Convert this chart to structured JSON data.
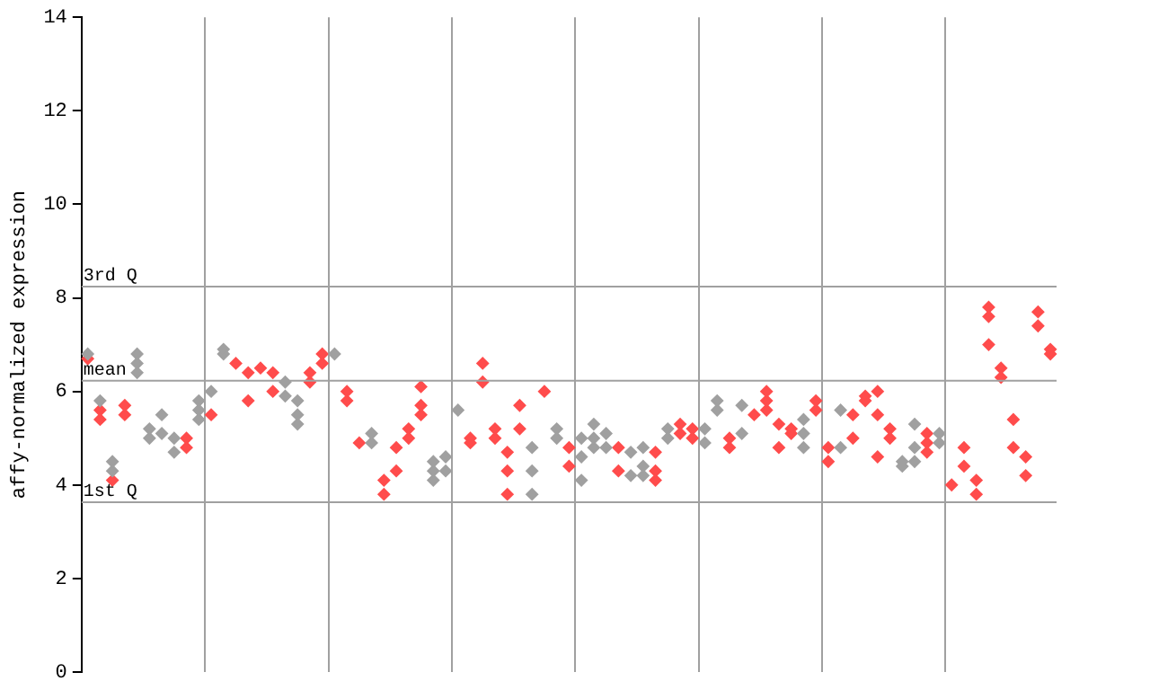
{
  "chart_data": {
    "type": "scatter",
    "ylabel": "affy-normalized expression",
    "categories": [
      null,
      null,
      null,
      null,
      null,
      null,
      null,
      null,
      null,
      null,
      null,
      null,
      null,
      null,
      null,
      null,
      null,
      null,
      null,
      null,
      null,
      null,
      null,
      null,
      null,
      null,
      null,
      null,
      null,
      null,
      null,
      null,
      null,
      null,
      null,
      null,
      null,
      null,
      null,
      null,
      null,
      null,
      null,
      null,
      null,
      null,
      null,
      null,
      null,
      null,
      null,
      null,
      null,
      null,
      null,
      null,
      null,
      null,
      null,
      null,
      null,
      null,
      null,
      null,
      null,
      null,
      null,
      null,
      null,
      null,
      null,
      null,
      null,
      null,
      null,
      null,
      null,
      null,
      null
    ],
    "ylim": [
      0,
      14
    ],
    "yticks": [
      0,
      2,
      4,
      6,
      8,
      10,
      12,
      14
    ],
    "grid": "x",
    "tick_labels": "y",
    "marker": "diamond",
    "series": [
      {
        "color": "#a0a0a0",
        "values": [
          6.8,
          5.8,
          4.5,
          null,
          6.8,
          5.2,
          5.5,
          5.0,
          null,
          5.8,
          6.0,
          6.9,
          null,
          null,
          null,
          null,
          6.2,
          5.8,
          null,
          null,
          6.8,
          null,
          null,
          5.1,
          null,
          null,
          null,
          null,
          4.5,
          4.6,
          5.6,
          null,
          null,
          null,
          null,
          null,
          4.8,
          null,
          5.2,
          null,
          5.0,
          5.3,
          5.1,
          null,
          4.7,
          4.8,
          null,
          5.2,
          null,
          null,
          5.2,
          5.8,
          null,
          5.7,
          null,
          null,
          null,
          null,
          5.4,
          null,
          null,
          5.6,
          null,
          null,
          null,
          null,
          4.5,
          5.3,
          null,
          5.1,
          null,
          null,
          null,
          null,
          null,
          null,
          null,
          null,
          null
        ]
      },
      {
        "color": "#a0a0a0",
        "values": [
          null,
          null,
          4.3,
          null,
          6.6,
          5.0,
          5.1,
          4.7,
          null,
          5.6,
          null,
          6.8,
          null,
          null,
          null,
          null,
          5.9,
          5.5,
          null,
          null,
          null,
          null,
          null,
          4.9,
          null,
          null,
          null,
          null,
          4.3,
          4.3,
          null,
          null,
          null,
          null,
          null,
          null,
          4.3,
          null,
          5.0,
          null,
          4.6,
          5.0,
          4.8,
          null,
          4.2,
          4.4,
          null,
          5.0,
          null,
          null,
          4.9,
          5.6,
          null,
          5.1,
          null,
          null,
          null,
          null,
          5.1,
          null,
          null,
          4.8,
          null,
          null,
          null,
          null,
          4.4,
          4.8,
          null,
          4.9,
          null,
          null,
          null,
          null,
          null,
          null,
          null,
          null,
          null
        ]
      },
      {
        "color": "#a0a0a0",
        "values": [
          null,
          null,
          null,
          null,
          6.4,
          null,
          null,
          null,
          null,
          5.4,
          null,
          null,
          null,
          null,
          null,
          null,
          null,
          5.3,
          null,
          null,
          null,
          null,
          null,
          null,
          null,
          null,
          null,
          null,
          4.1,
          null,
          null,
          null,
          null,
          null,
          null,
          null,
          3.8,
          null,
          null,
          null,
          4.1,
          4.8,
          null,
          null,
          null,
          4.2,
          null,
          null,
          null,
          null,
          null,
          null,
          null,
          null,
          null,
          null,
          null,
          null,
          4.8,
          null,
          null,
          null,
          null,
          null,
          null,
          null,
          null,
          4.5,
          null,
          null,
          null,
          null,
          null,
          null,
          null,
          null,
          null,
          null,
          null
        ]
      },
      {
        "color": "#ff4c4c",
        "values": [
          6.7,
          5.6,
          4.1,
          5.7,
          null,
          null,
          null,
          null,
          5.0,
          null,
          5.5,
          null,
          6.6,
          6.4,
          6.5,
          6.4,
          null,
          null,
          6.4,
          6.8,
          null,
          6.0,
          4.9,
          null,
          4.1,
          4.8,
          5.2,
          6.1,
          null,
          null,
          null,
          5.0,
          6.6,
          5.2,
          4.7,
          5.7,
          null,
          6.0,
          null,
          4.8,
          null,
          null,
          null,
          4.8,
          null,
          null,
          4.7,
          null,
          5.3,
          5.2,
          null,
          null,
          5.0,
          null,
          5.5,
          6.0,
          5.3,
          5.2,
          null,
          5.8,
          4.8,
          null,
          5.5,
          5.9,
          6.0,
          5.2,
          null,
          null,
          5.1,
          null,
          4.0,
          4.8,
          4.1,
          7.8,
          6.5,
          5.4,
          4.6,
          7.7,
          6.9
        ]
      },
      {
        "color": "#ff4c4c",
        "values": [
          null,
          5.4,
          null,
          5.5,
          null,
          null,
          null,
          null,
          4.8,
          null,
          null,
          null,
          null,
          5.8,
          null,
          6.0,
          null,
          null,
          6.2,
          6.6,
          null,
          5.8,
          null,
          null,
          3.8,
          4.3,
          5.0,
          5.7,
          null,
          null,
          null,
          4.9,
          6.2,
          5.0,
          4.3,
          5.2,
          null,
          null,
          null,
          4.4,
          null,
          null,
          null,
          4.3,
          null,
          null,
          4.3,
          null,
          5.1,
          5.0,
          null,
          null,
          4.8,
          null,
          null,
          5.8,
          4.8,
          5.1,
          null,
          5.6,
          4.5,
          null,
          5.0,
          5.8,
          5.5,
          5.0,
          null,
          null,
          4.9,
          null,
          null,
          4.4,
          3.8,
          7.6,
          6.3,
          4.8,
          4.2,
          7.4,
          6.8
        ]
      },
      {
        "color": "#ff4c4c",
        "values": [
          null,
          null,
          null,
          null,
          null,
          null,
          null,
          null,
          null,
          null,
          null,
          null,
          null,
          null,
          null,
          null,
          null,
          null,
          null,
          null,
          null,
          null,
          null,
          null,
          null,
          null,
          null,
          5.5,
          null,
          null,
          null,
          null,
          null,
          null,
          3.8,
          null,
          null,
          null,
          null,
          null,
          null,
          null,
          null,
          null,
          null,
          null,
          4.1,
          null,
          null,
          null,
          null,
          null,
          null,
          null,
          null,
          5.6,
          null,
          null,
          null,
          null,
          null,
          null,
          null,
          null,
          4.6,
          null,
          null,
          null,
          4.7,
          null,
          null,
          null,
          null,
          7.0,
          null,
          null,
          null,
          null,
          null
        ]
      }
    ],
    "ref_lines": [
      {
        "axis": "y",
        "value": 8.24,
        "label": "3rd Q",
        "color": "#a0a0a0"
      },
      {
        "axis": "y",
        "value": 6.23,
        "label": "mean",
        "color": "#a0a0a0"
      },
      {
        "axis": "y",
        "value": 3.63,
        "label": "1st Q",
        "color": "#a0a0a0"
      }
    ]
  }
}
